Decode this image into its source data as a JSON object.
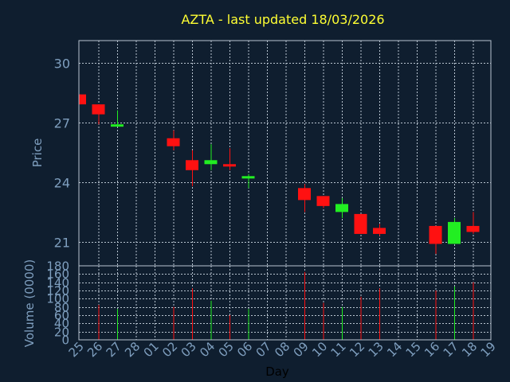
{
  "chart_data": {
    "type": "candlestick",
    "title": "AZTA - last updated 18/03/2026",
    "xlabel": "Day",
    "price_panel": {
      "ylabel": "Price",
      "ylim": [
        19.8,
        31.1
      ],
      "yticks": [
        21,
        24,
        27,
        30
      ]
    },
    "volume_panel": {
      "ylabel": "Volume (0000)",
      "ylim": [
        0,
        180
      ],
      "yticks": [
        0,
        20,
        40,
        60,
        80,
        100,
        120,
        140,
        160,
        180
      ]
    },
    "categories": [
      "25",
      "26",
      "27",
      "28",
      "01",
      "02",
      "03",
      "04",
      "05",
      "06",
      "07",
      "08",
      "09",
      "10",
      "11",
      "12",
      "13",
      "14",
      "15",
      "16",
      "17",
      "18",
      "19"
    ],
    "candles": [
      {
        "day": "25",
        "open": 28.4,
        "close": 27.9,
        "high": 28.4,
        "low": 27.9,
        "volume": 0
      },
      {
        "day": "26",
        "open": 27.9,
        "close": 27.4,
        "high": 27.9,
        "low": 26.9,
        "volume": 85
      },
      {
        "day": "27",
        "open": 26.8,
        "close": 26.9,
        "high": 27.6,
        "low": 26.8,
        "volume": 75
      },
      {
        "day": "02",
        "open": 26.2,
        "close": 25.8,
        "high": 26.6,
        "low": 25.6,
        "volume": 80
      },
      {
        "day": "03",
        "open": 25.1,
        "close": 24.6,
        "high": 25.6,
        "low": 23.8,
        "volume": 125
      },
      {
        "day": "04",
        "open": 24.9,
        "close": 25.1,
        "high": 25.9,
        "low": 24.6,
        "volume": 95
      },
      {
        "day": "05",
        "open": 24.9,
        "close": 24.8,
        "high": 25.7,
        "low": 24.6,
        "volume": 60
      },
      {
        "day": "06",
        "open": 24.3,
        "close": 24.3,
        "high": 24.4,
        "low": 23.7,
        "volume": 75
      },
      {
        "day": "09",
        "open": 23.7,
        "close": 23.1,
        "high": 23.9,
        "low": 22.5,
        "volume": 165
      },
      {
        "day": "10",
        "open": 23.3,
        "close": 22.8,
        "high": 23.3,
        "low": 22.7,
        "volume": 90
      },
      {
        "day": "11",
        "open": 22.5,
        "close": 22.9,
        "high": 23.2,
        "low": 22.2,
        "volume": 80
      },
      {
        "day": "12",
        "open": 22.4,
        "close": 21.4,
        "high": 22.4,
        "low": 21.4,
        "volume": 105
      },
      {
        "day": "13",
        "open": 21.7,
        "close": 21.4,
        "high": 21.9,
        "low": 21.3,
        "volume": 125
      },
      {
        "day": "16",
        "open": 21.8,
        "close": 20.9,
        "high": 21.8,
        "low": 20.4,
        "volume": 120
      },
      {
        "day": "17",
        "open": 20.9,
        "close": 22.0,
        "high": 22.2,
        "low": 20.9,
        "volume": 130
      },
      {
        "day": "18",
        "open": 21.8,
        "close": 21.5,
        "high": 22.5,
        "low": 21.4,
        "volume": 140
      }
    ],
    "colors": {
      "background": "#0f1e2f",
      "grid": "#b8c4d0",
      "text": "#7f9fbf",
      "title": "#ffff33",
      "up": "#22ee22",
      "down": "#ff1111"
    }
  }
}
